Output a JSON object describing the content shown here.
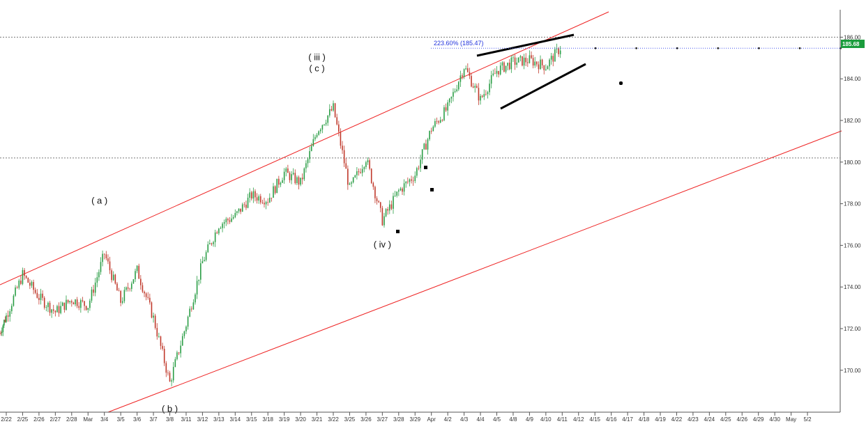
{
  "chart_data": {
    "type": "candlestick",
    "x_ticks": [
      "2/22",
      "2/25",
      "2/26",
      "2/27",
      "2/28",
      "Mar",
      "3/4",
      "3/5",
      "3/6",
      "3/7",
      "3/8",
      "3/11",
      "3/12",
      "3/13",
      "3/14",
      "3/15",
      "3/18",
      "3/19",
      "3/20",
      "3/21",
      "3/22",
      "3/25",
      "3/26",
      "3/27",
      "3/28",
      "3/29",
      "Apr",
      "4/2",
      "4/3",
      "4/4",
      "4/5",
      "4/8",
      "4/9",
      "4/10",
      "4/11",
      "4/12",
      "4/15",
      "4/16",
      "4/17",
      "4/18",
      "4/19",
      "4/22",
      "4/23",
      "4/24",
      "4/25",
      "4/26",
      "4/29",
      "4/30",
      "May",
      "5/2"
    ],
    "y_ticks": [
      "170.00",
      "172.00",
      "174.00",
      "176.00",
      "178.00",
      "180.00",
      "182.00",
      "184.00",
      "186.00"
    ],
    "ylim": [
      168,
      187.2
    ],
    "last_price": "185.68",
    "fib_level": {
      "label": "223.60% (185.47)",
      "value": 185.47
    },
    "horizontal_levels": [
      186.0,
      180.2
    ],
    "wave_labels": [
      {
        "text": "( a )",
        "date": "3/1",
        "price": 178.0
      },
      {
        "text": "( b )",
        "date": "3/8",
        "price": 168.0
      },
      {
        "text": "( iii )",
        "date": "3/21",
        "price": 184.9
      },
      {
        "text": "( c )",
        "date": "3/21",
        "price": 184.35
      },
      {
        "text": "( iv )",
        "date": "3/27",
        "price": 175.9
      }
    ],
    "price_path": [
      {
        "x": "2/21",
        "y": 171.8
      },
      {
        "x": "2/22",
        "y": 172.6
      },
      {
        "x": "2/25",
        "y": 174.6
      },
      {
        "x": "2/26",
        "y": 173.5
      },
      {
        "x": "2/27",
        "y": 172.8
      },
      {
        "x": "2/28",
        "y": 173.4
      },
      {
        "x": "Mar",
        "y": 173.1
      },
      {
        "x": "3/4",
        "y": 175.6
      },
      {
        "x": "3/5",
        "y": 173.3
      },
      {
        "x": "3/6",
        "y": 174.8
      },
      {
        "x": "3/7",
        "y": 172.5
      },
      {
        "x": "3/8",
        "y": 169.4
      },
      {
        "x": "3/11",
        "y": 172.2
      },
      {
        "x": "3/12",
        "y": 175.2
      },
      {
        "x": "3/13",
        "y": 177.0
      },
      {
        "x": "3/14",
        "y": 177.4
      },
      {
        "x": "3/15",
        "y": 178.4
      },
      {
        "x": "3/18",
        "y": 178.2
      },
      {
        "x": "3/19",
        "y": 179.5
      },
      {
        "x": "3/20",
        "y": 179.0
      },
      {
        "x": "3/21",
        "y": 181.5
      },
      {
        "x": "3/22",
        "y": 182.6
      },
      {
        "x": "3/25",
        "y": 178.7
      },
      {
        "x": "3/26",
        "y": 180.2
      },
      {
        "x": "3/27",
        "y": 177.2
      },
      {
        "x": "3/28",
        "y": 178.6
      },
      {
        "x": "3/29",
        "y": 179.4
      },
      {
        "x": "Apr",
        "y": 181.6
      },
      {
        "x": "4/2",
        "y": 182.6
      },
      {
        "x": "4/3",
        "y": 184.6
      },
      {
        "x": "4/4",
        "y": 183.0
      },
      {
        "x": "4/5",
        "y": 184.4
      },
      {
        "x": "4/8",
        "y": 184.8
      },
      {
        "x": "4/9",
        "y": 184.9
      },
      {
        "x": "4/10",
        "y": 184.6
      },
      {
        "x": "4/11",
        "y": 185.6
      }
    ]
  }
}
